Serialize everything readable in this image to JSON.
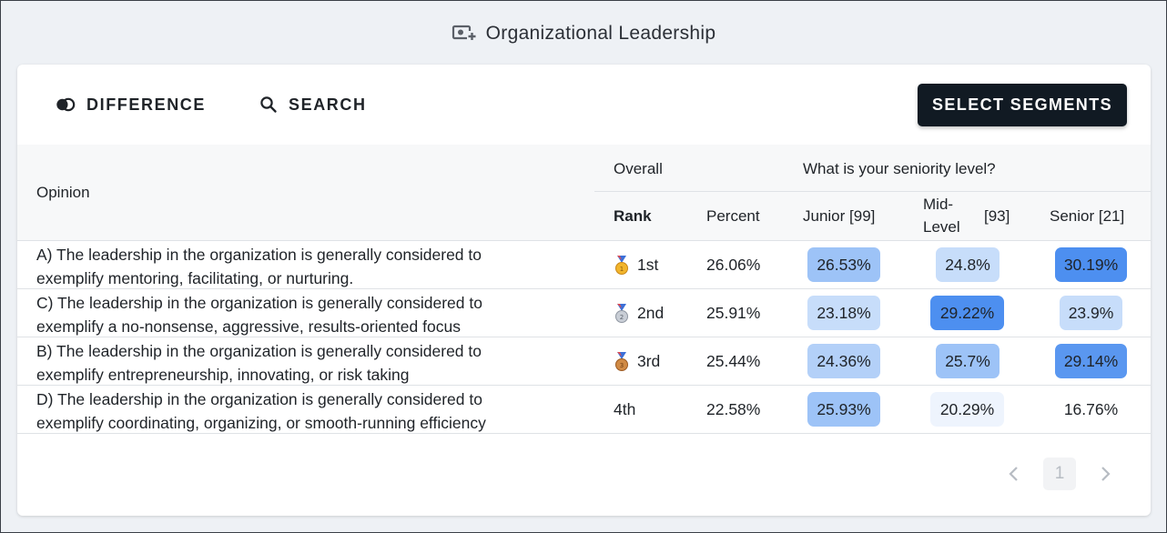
{
  "header": {
    "title": "Organizational Leadership",
    "icon": "presentation-add-icon"
  },
  "toolbar": {
    "difference_label": "DIFFERENCE",
    "search_label": "SEARCH",
    "select_segments_label": "SELECT SEGMENTS"
  },
  "table": {
    "columns": {
      "opinion": "Opinion",
      "overall": "Overall",
      "question": "What is your seniority level?",
      "rank": "Rank",
      "percent": "Percent",
      "junior": "Junior [99]",
      "mid_line1": "Mid-",
      "mid_line2": "Level",
      "mid_count": "[93]",
      "senior": "Senior [21]"
    },
    "rows": [
      {
        "line1": "A) The leadership in the organization is generally considered to",
        "line2": "exemplify mentoring, facilitating, or nurturing.",
        "rank": "1st",
        "medal": "gold",
        "percent": "26.06%",
        "junior": "26.53%",
        "mid": "24.8%",
        "senior": "30.19%"
      },
      {
        "line1": "C) The leadership in the organization is generally considered to",
        "line2": "exemplify a no-nonsense, aggressive, results-oriented focus",
        "rank": "2nd",
        "medal": "silver",
        "percent": "25.91%",
        "junior": "23.18%",
        "mid": "29.22%",
        "senior": "23.9%"
      },
      {
        "line1": "B) The leadership in the organization is generally considered to",
        "line2": "exemplify entrepreneurship, innovating, or risk taking",
        "rank": "3rd",
        "medal": "bronze",
        "percent": "25.44%",
        "junior": "24.36%",
        "mid": "25.7%",
        "senior": "29.14%"
      },
      {
        "line1": "D) The leadership in the organization is generally considered to",
        "line2": "exemplify coordinating, organizing, or smooth-running efficiency",
        "rank": "4th",
        "medal": "",
        "percent": "22.58%",
        "junior": "25.93%",
        "mid": "20.29%",
        "senior": "16.76%"
      }
    ]
  },
  "pagination": {
    "current_page": "1"
  },
  "colors": {
    "heat_strong": "#4d8ff0",
    "heat_medium": "#9dc3f7",
    "heat_light": "#c7ddfa",
    "heat_faint": "#eef4fd",
    "button_dark": "#111a23"
  }
}
